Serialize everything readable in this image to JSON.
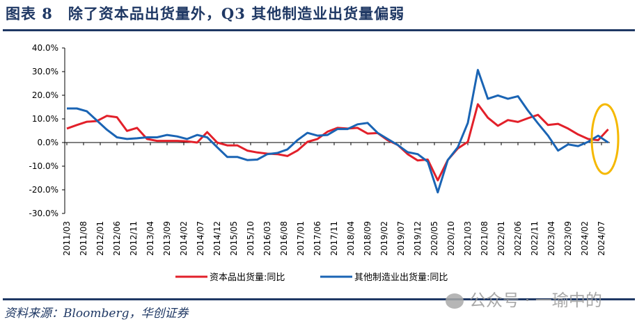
{
  "title": "图表 8　除了资本品出货量外，Q3 其他制造业出货量偏弱",
  "source": "资料来源：Bloomberg，华创证券",
  "watermark": "公众号 · 一瑜中的",
  "colors": {
    "series1": "#e2202a",
    "series2": "#1a64b4",
    "highlight": "#f5b800",
    "navy": "#1f3864"
  },
  "chart_data": {
    "type": "line",
    "title": "",
    "xlabel": "",
    "ylabel": "",
    "ylim": [
      -30,
      40
    ],
    "yticks": [
      "-30.0%",
      "-20.0%",
      "-10.0%",
      "0.0%",
      "10.0%",
      "20.0%",
      "30.0%",
      "40.0%"
    ],
    "ytick_values": [
      -30,
      -20,
      -10,
      0,
      10,
      20,
      30,
      40
    ],
    "xtick_labels": [
      "2011/03",
      "2011/08",
      "2012/01",
      "2012/06",
      "2012/11",
      "2013/04",
      "2013/09",
      "2014/02",
      "2014/07",
      "2014/12",
      "2015/05",
      "2015/10",
      "2016/03",
      "2016/08",
      "2017/01",
      "2017/06",
      "2017/11",
      "2018/04",
      "2018/09",
      "2019/02",
      "2019/07",
      "2019/12",
      "2020/05",
      "2020/10",
      "2021/03",
      "2021/08",
      "2022/01",
      "2022/06",
      "2022/11",
      "2023/04",
      "2023/09",
      "2024/02",
      "2024/07"
    ],
    "x_frequency": "quarterly, starting 2011/03",
    "legend_position": "bottom",
    "series": [
      {
        "name": "资本品出货量:同比",
        "color": "#e2202a",
        "values": [
          5.9,
          7.4,
          8.8,
          9.1,
          11.3,
          10.7,
          4.9,
          6.2,
          1.5,
          0.7,
          0.7,
          0.7,
          0.5,
          0.0,
          4.4,
          0.0,
          -1.2,
          -1.2,
          -3.4,
          -4.2,
          -4.7,
          -4.9,
          -5.7,
          -3.4,
          0.3,
          1.5,
          4.6,
          6.2,
          5.9,
          6.2,
          3.8,
          4.0,
          1.0,
          -1.0,
          -4.9,
          -7.6,
          -7.2,
          -16.0,
          -7.4,
          -2.5,
          0.3,
          16.2,
          10.5,
          7.1,
          9.5,
          8.7,
          10.3,
          11.7,
          7.4,
          7.9,
          5.9,
          3.4,
          1.5,
          1.0,
          5.6
        ]
      },
      {
        "name": "其他制造业出货量:同比",
        "color": "#1a64b4",
        "values": [
          14.4,
          14.4,
          13.2,
          9.3,
          5.4,
          2.2,
          1.5,
          1.8,
          2.2,
          2.2,
          3.2,
          2.6,
          1.5,
          3.2,
          2.2,
          -2.0,
          -6.1,
          -6.1,
          -7.4,
          -7.2,
          -4.9,
          -4.4,
          -2.9,
          1.0,
          4.1,
          2.9,
          3.2,
          5.7,
          5.7,
          7.7,
          8.3,
          4.1,
          1.5,
          -1.0,
          -4.1,
          -4.9,
          -8.1,
          -21.1,
          -7.4,
          -2.0,
          8.3,
          30.7,
          18.5,
          19.9,
          18.5,
          19.6,
          13.5,
          8.1,
          2.9,
          -3.4,
          -0.8,
          -1.5,
          0.3,
          2.9,
          0.0
        ]
      }
    ],
    "annotations": [
      "highlight ellipse around latest data point (2024 Q3)"
    ]
  }
}
